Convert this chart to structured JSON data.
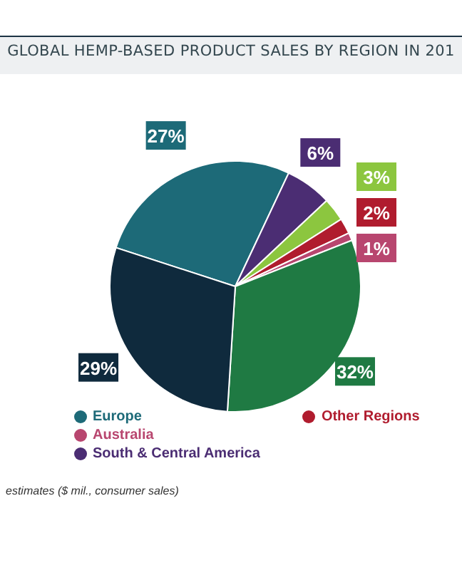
{
  "chart_data": {
    "type": "pie",
    "title": "GLOBAL HEMP-BASED PRODUCT SALES BY REGION IN 201",
    "categories": [
      "Europe",
      "South & Central America",
      null,
      "Other Regions",
      "Australia",
      null,
      null
    ],
    "values": [
      27,
      6,
      3,
      2,
      1,
      32,
      29
    ],
    "value_labels": [
      "27%",
      "6%",
      "3%",
      "2%",
      "1%",
      "32%",
      "29%"
    ],
    "colors": [
      "#1d6a78",
      "#4b2d73",
      "#8cc63f",
      "#b01c2e",
      "#b8466f",
      "#1f7a43",
      "#0f2a3d"
    ],
    "legend": "bottom",
    "annotations": [
      "estimates ($ mil., consumer sales)"
    ]
  }
}
